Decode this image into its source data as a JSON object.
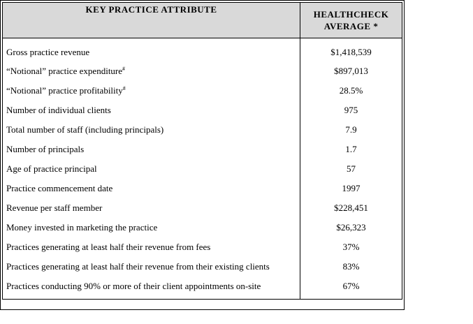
{
  "header": {
    "attribute_heading": "KEY PRACTICE ATTRIBUTE",
    "average_heading_line1": "HEALTHCHECK",
    "average_heading_line2": "AVERAGE *"
  },
  "rows": [
    {
      "label": "Gross practice revenue",
      "sup": "",
      "value": "$1,418,539"
    },
    {
      "label": "“Notional” practice expenditure",
      "sup": "#",
      "value": "$897,013"
    },
    {
      "label": "“Notional” practice profitability",
      "sup": "#",
      "value": "28.5%"
    },
    {
      "label": "Number of individual clients",
      "sup": "",
      "value": "975"
    },
    {
      "label": "Total number of staff (including principals)",
      "sup": "",
      "value": "7.9"
    },
    {
      "label": "Number of principals",
      "sup": "",
      "value": "1.7"
    },
    {
      "label": "Age of practice principal",
      "sup": "",
      "value": "57"
    },
    {
      "label": "Practice commencement date",
      "sup": "",
      "value": "1997"
    },
    {
      "label": "Revenue per staff member",
      "sup": "",
      "value": "$228,451"
    },
    {
      "label": "Money invested in marketing the practice",
      "sup": "",
      "value": "$26,323"
    },
    {
      "label": "Practices generating at least half their revenue from fees",
      "sup": "",
      "value": "37%"
    },
    {
      "label": "Practices generating at least half their revenue from their existing clients",
      "sup": "",
      "value": "83%"
    },
    {
      "label": "Practices conducting 90% or more of their client appointments on-site",
      "sup": "",
      "value": "67%"
    }
  ]
}
